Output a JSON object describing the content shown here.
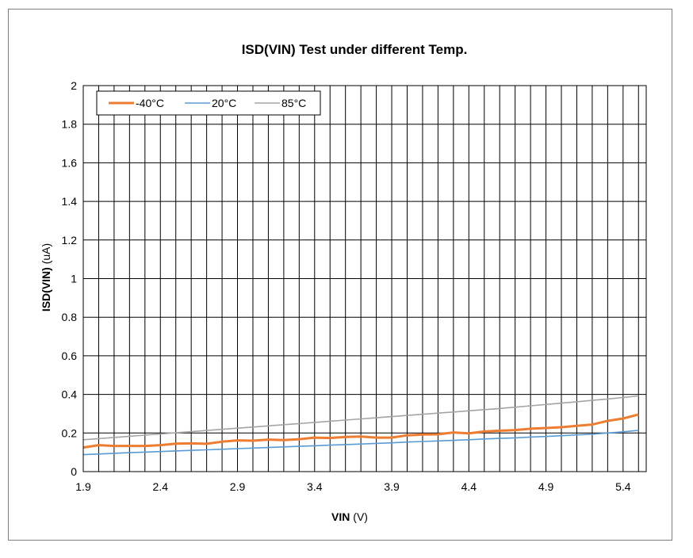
{
  "chart_data": {
    "type": "line",
    "title": "ISD(VIN) Test under different Temp.",
    "xlabel_bold": "VIN",
    "xlabel_unit": "(V)",
    "ylabel_bold": "ISD(VIN)",
    "ylabel_unit": "(uA)",
    "xlim": [
      1.9,
      5.55
    ],
    "ylim": [
      0,
      2
    ],
    "xtick_labels": [
      "1.9",
      "2.4",
      "2.9",
      "3.4",
      "3.9",
      "4.4",
      "4.9",
      "5.4"
    ],
    "xtick_values": [
      1.9,
      2.4,
      2.9,
      3.4,
      3.9,
      4.4,
      4.9,
      5.4
    ],
    "ytick_labels": [
      "0",
      "0.2",
      "0.4",
      "0.6",
      "0.8",
      "1",
      "1.2",
      "1.4",
      "1.6",
      "1.8",
      "2"
    ],
    "ytick_values": [
      0,
      0.2,
      0.4,
      0.6,
      0.8,
      1.0,
      1.2,
      1.4,
      1.6,
      1.8,
      2.0
    ],
    "grid": "vertical every 0.1 V, horizontal every 0.2 uA",
    "legend_position": "top-left",
    "x": [
      1.9,
      2.0,
      2.1,
      2.2,
      2.3,
      2.4,
      2.5,
      2.6,
      2.7,
      2.8,
      2.9,
      3.0,
      3.1,
      3.2,
      3.3,
      3.4,
      3.5,
      3.6,
      3.7,
      3.8,
      3.9,
      4.0,
      4.1,
      4.2,
      4.3,
      4.4,
      4.5,
      4.6,
      4.7,
      4.8,
      4.9,
      5.0,
      5.1,
      5.2,
      5.3,
      5.4,
      5.5
    ],
    "series": [
      {
        "name": "-40°C",
        "color": "#ED7D31",
        "values": [
          0.125,
          0.137,
          0.133,
          0.133,
          0.133,
          0.137,
          0.145,
          0.146,
          0.144,
          0.155,
          0.162,
          0.16,
          0.166,
          0.163,
          0.168,
          0.176,
          0.174,
          0.18,
          0.182,
          0.176,
          0.176,
          0.188,
          0.192,
          0.193,
          0.203,
          0.198,
          0.208,
          0.212,
          0.215,
          0.222,
          0.226,
          0.23,
          0.237,
          0.244,
          0.263,
          0.275,
          0.296
        ]
      },
      {
        "name": "20°C",
        "color": "#5B9BD5",
        "values": [
          0.088,
          0.091,
          0.095,
          0.098,
          0.101,
          0.104,
          0.107,
          0.11,
          0.113,
          0.116,
          0.119,
          0.122,
          0.125,
          0.128,
          0.131,
          0.134,
          0.137,
          0.14,
          0.143,
          0.146,
          0.149,
          0.153,
          0.156,
          0.159,
          0.162,
          0.165,
          0.169,
          0.172,
          0.175,
          0.179,
          0.182,
          0.186,
          0.19,
          0.194,
          0.2,
          0.206,
          0.214
        ]
      },
      {
        "name": "85°C",
        "color": "#A5A5A5",
        "values": [
          0.165,
          0.171,
          0.177,
          0.183,
          0.189,
          0.195,
          0.201,
          0.207,
          0.213,
          0.219,
          0.225,
          0.231,
          0.237,
          0.243,
          0.249,
          0.255,
          0.261,
          0.267,
          0.273,
          0.279,
          0.285,
          0.291,
          0.297,
          0.303,
          0.309,
          0.315,
          0.321,
          0.327,
          0.334,
          0.341,
          0.348,
          0.355,
          0.362,
          0.369,
          0.376,
          0.384,
          0.392
        ]
      }
    ]
  }
}
